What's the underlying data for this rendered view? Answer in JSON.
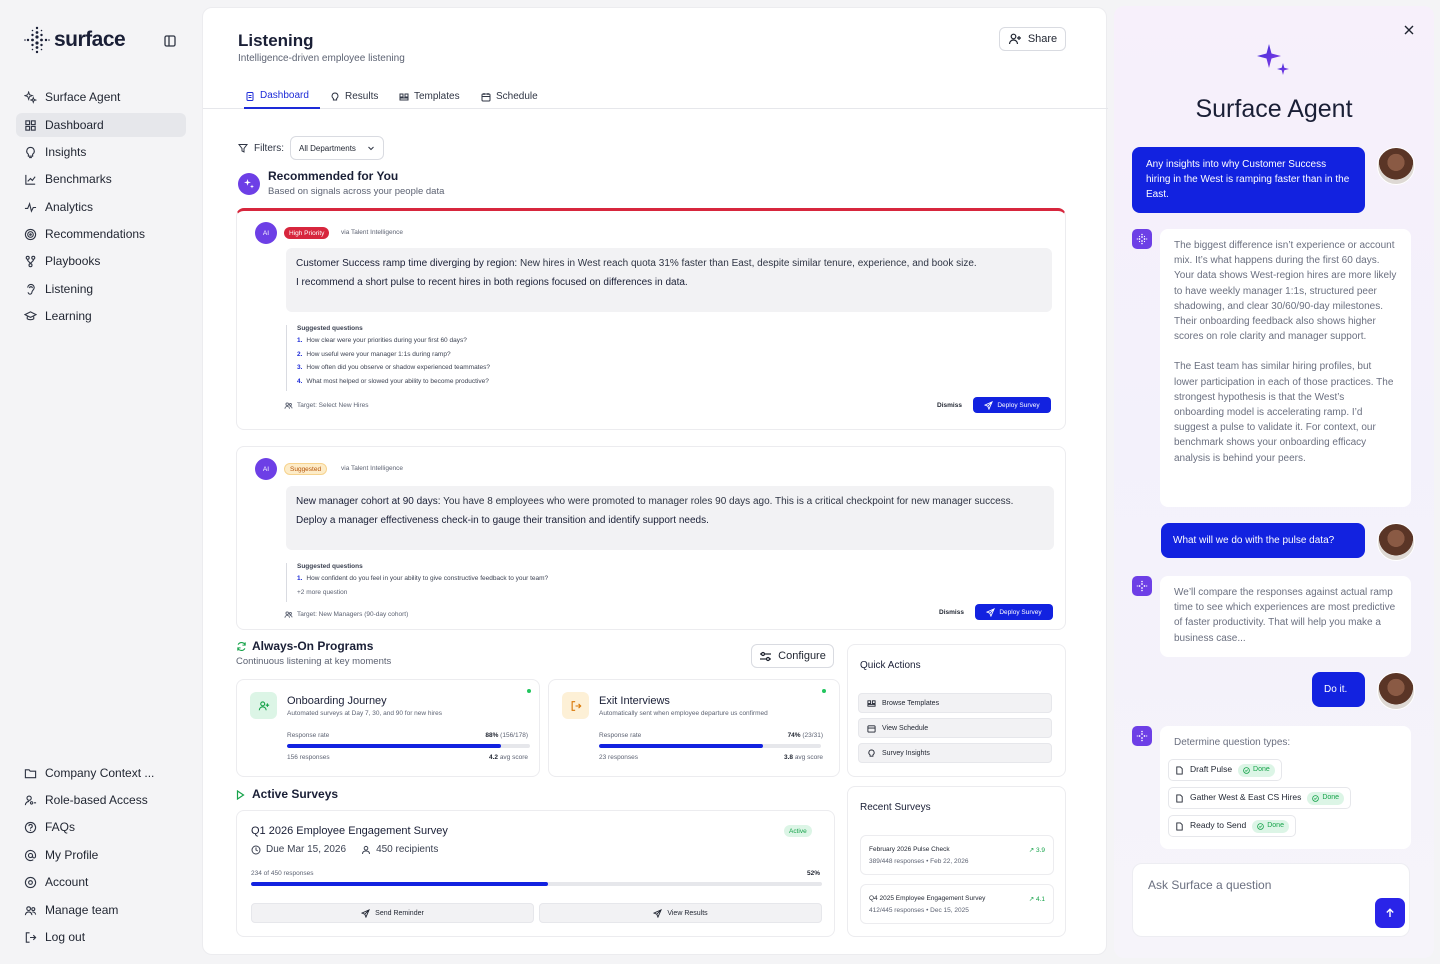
{
  "brand": {
    "name": "surface",
    "accent": "#1222e0",
    "purple": "#6d3fe6"
  },
  "sidebar": {
    "top_items": [
      {
        "label": "Surface Agent",
        "icon": "sparkle-icon"
      },
      {
        "label": "Dashboard",
        "icon": "grid-icon",
        "active": true
      },
      {
        "label": "Insights",
        "icon": "lightbulb-icon"
      },
      {
        "label": "Benchmarks",
        "icon": "chart-line-icon"
      },
      {
        "label": "Analytics",
        "icon": "activity-icon"
      },
      {
        "label": "Recommendations",
        "icon": "target-icon"
      },
      {
        "label": "Playbooks",
        "icon": "branch-icon"
      },
      {
        "label": "Listening",
        "icon": "ear-icon"
      },
      {
        "label": "Learning",
        "icon": "graduation-icon"
      }
    ],
    "bottom_items": [
      {
        "label": "Company Context ...",
        "icon": "folder-icon"
      },
      {
        "label": "Role-based Access",
        "icon": "user-key-icon"
      },
      {
        "label": "FAQs",
        "icon": "help-icon"
      },
      {
        "label": "My Profile",
        "icon": "at-icon"
      },
      {
        "label": "Account",
        "icon": "settings-icon"
      },
      {
        "label": "Manage team",
        "icon": "users-icon"
      },
      {
        "label": "Log out",
        "icon": "logout-icon"
      }
    ]
  },
  "header": {
    "title": "Listening",
    "subtitle": "Intelligence-driven employee listening",
    "share_label": "Share"
  },
  "tabs": [
    {
      "label": "Dashboard",
      "active": true
    },
    {
      "label": "Results"
    },
    {
      "label": "Templates"
    },
    {
      "label": "Schedule"
    }
  ],
  "filters": {
    "label": "Filters:",
    "department": "All Departments"
  },
  "recommended": {
    "title": "Recommended for You",
    "subtitle": "Based on signals across your people data",
    "cards": [
      {
        "avatar": "AI",
        "badge": "High Priority",
        "via": "via Talent Intelligence",
        "headline": "Customer Success ramp time diverging by region:",
        "body": " New hires in West reach quota 31% faster than East, despite similar tenure, experience, and book size.",
        "recommend": "I recommend a short pulse to recent hires in both regions focused on differences in data.",
        "sq_title": "Suggested questions",
        "questions": [
          "How clear were your priorities during your first 60 days?",
          "How useful were your manager 1:1s during ramp?",
          "How often did you observe or shadow experienced teammates?",
          "What most helped or slowed your ability to become productive?"
        ],
        "target": "Target: Select New Hires",
        "dismiss": "Dismiss",
        "deploy": "Deploy Survey"
      },
      {
        "avatar": "AI",
        "badge": "Suggested",
        "via": "via Talent Intelligence",
        "headline": "New manager cohort at 90 days:",
        "body": " You have 8 employees who were promoted to manager roles 90 days ago. This is a critical checkpoint for new manager success.",
        "recommend": "Deploy a manager effectiveness check-in to gauge their transition and identify support needs.",
        "sq_title": "Suggested questions",
        "questions": [
          "How confident do you feel in your ability to give constructive feedback to your team?"
        ],
        "more": "+2 more question",
        "target": "Target: New Managers (90-day cohort)",
        "dismiss": "Dismiss",
        "deploy": "Deploy Survey"
      }
    ]
  },
  "always_on": {
    "title": "Always-On Programs",
    "subtitle": "Continuous listening at key moments",
    "configure": "Configure",
    "programs": [
      {
        "title": "Onboarding Journey",
        "subtitle": "Automated surveys at Day 7, 30, and 90 for new hires",
        "rate_label": "Response rate",
        "rate": "88%",
        "rate_detail": "(156/178)",
        "rate_fraction": 0.88,
        "responses": "156 responses",
        "score": "4.2",
        "score_label": "avg score"
      },
      {
        "title": "Exit Interviews",
        "subtitle": "Automatically sent when employee departure us confirmed",
        "rate_label": "Response rate",
        "rate": "74%",
        "rate_detail": "(23/31)",
        "rate_fraction": 0.74,
        "responses": "23 responses",
        "score": "3.8",
        "score_label": "avg score"
      }
    ]
  },
  "active_surveys": {
    "title": "Active Surveys",
    "survey": {
      "name": "Q1 2026 Employee Engagement Survey",
      "status": "Active",
      "due": "Due Mar 15, 2026",
      "recipients": "450 recipients",
      "progress_label": "234 of 450 responses",
      "progress": "52%",
      "progress_fraction": 0.52,
      "remind": "Send Reminder",
      "view": "View Results"
    }
  },
  "quick_actions": {
    "title": "Quick Actions",
    "items": [
      "Browse Templates",
      "View Schedule",
      "Survey Insights"
    ]
  },
  "recent_surveys": {
    "title": "Recent Surveys",
    "items": [
      {
        "name": "February 2026 Pulse Check",
        "meta": "389/448 responses  •  Feb 22, 2026",
        "score": "3.9"
      },
      {
        "name": "Q4 2025 Employee Engagement Survey",
        "meta": "412/445 responses  •  Dec 15, 2025",
        "score": "4.1"
      }
    ]
  },
  "agent": {
    "title": "Surface Agent",
    "messages": [
      {
        "role": "user",
        "text": "Any insights into why Customer Success hiring in the West is ramping faster than in the East."
      },
      {
        "role": "agent",
        "text": "The biggest difference isn’t experience or account mix. It’s what happens during the first 60 days. Your data shows West-region hires are more likely to have weekly manager 1:1s, structured peer shadowing, and clear 30/60/90-day milestones. Their onboarding feedback also shows higher scores on role clarity and manager support."
      },
      {
        "role": "agent_cont",
        "text": "The East team has similar hiring profiles, but lower participation in each of those practices. The strongest hypothesis is that the West’s onboarding model is accelerating ramp. I’d suggest a pulse to validate it. For context, our benchmark shows your onboarding efficacy analysis is behind your peers."
      },
      {
        "role": "user",
        "text": "What will we do with the pulse data?"
      },
      {
        "role": "agent",
        "text": "We’ll compare the responses against actual ramp time to see which experiences are most predictive of faster productivity. That will help you make a business case..."
      },
      {
        "role": "user",
        "text": "Do it."
      },
      {
        "role": "agent",
        "text": "Determine question types:"
      }
    ],
    "tasks": [
      {
        "label": "Draft Pulse",
        "status": "Done"
      },
      {
        "label": "Gather West & East CS Hires",
        "status": "Done"
      },
      {
        "label": "Ready to Send",
        "status": "Done"
      }
    ],
    "input_placeholder": "Ask Surface a question"
  }
}
